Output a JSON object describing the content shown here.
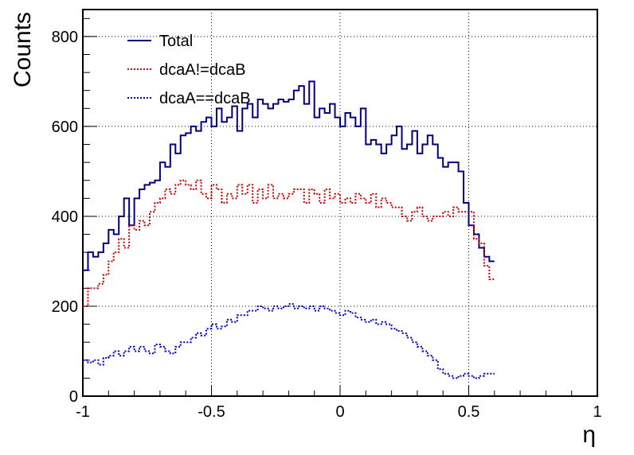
{
  "chart_data": {
    "type": "line",
    "title": "",
    "xlabel": "η",
    "ylabel": "Counts",
    "xlim": [
      -1,
      1
    ],
    "ylim": [
      0,
      860
    ],
    "x_ticks": [
      -1,
      -0.5,
      0,
      0.5,
      1
    ],
    "x_tick_labels": [
      "-1",
      "-0.5",
      "0",
      "0.5",
      "1"
    ],
    "y_ticks": [
      0,
      200,
      400,
      600,
      800
    ],
    "y_tick_labels": [
      "0",
      "200",
      "400",
      "600",
      "800"
    ],
    "grid": true,
    "legend_position": "top-left",
    "histogram": true,
    "bin_edges_start": -1,
    "bin_width": 0.02,
    "series": [
      {
        "name": "Total",
        "color": "#000080",
        "style": "solid",
        "values": [
          280,
          320,
          310,
          320,
          340,
          370,
          360,
          400,
          440,
          380,
          440,
          460,
          470,
          475,
          480,
          520,
          510,
          560,
          540,
          580,
          585,
          600,
          590,
          610,
          620,
          600,
          640,
          610,
          620,
          645,
          590,
          640,
          650,
          620,
          660,
          650,
          640,
          650,
          660,
          655,
          660,
          680,
          690,
          650,
          700,
          620,
          640,
          630,
          650,
          620,
          600,
          630,
          620,
          600,
          640,
          560,
          570,
          560,
          540,
          560,
          580,
          600,
          550,
          560,
          590,
          540,
          560,
          580,
          560,
          530,
          510,
          520,
          520,
          500,
          430,
          380,
          360,
          330,
          310,
          300
        ]
      },
      {
        "name": "dcaA!=dcaB",
        "color": "#cc0000",
        "style": "dotted",
        "values": [
          200,
          240,
          240,
          250,
          270,
          300,
          320,
          350,
          330,
          380,
          370,
          390,
          380,
          410,
          430,
          440,
          460,
          450,
          470,
          480,
          470,
          460,
          480,
          450,
          440,
          470,
          460,
          430,
          450,
          440,
          470,
          450,
          470,
          430,
          460,
          440,
          470,
          440,
          450,
          440,
          450,
          460,
          460,
          430,
          460,
          450,
          430,
          460,
          440,
          450,
          430,
          440,
          430,
          450,
          440,
          430,
          450,
          420,
          440,
          430,
          420,
          420,
          400,
          390,
          410,
          420,
          400,
          390,
          400,
          400,
          410,
          400,
          420,
          410,
          410,
          410,
          350,
          340,
          290,
          260
        ]
      },
      {
        "name": "dcaA==dcaB",
        "color": "#0000cc",
        "style": "dotted",
        "values": [
          80,
          75,
          80,
          70,
          85,
          90,
          100,
          90,
          100,
          110,
          100,
          110,
          100,
          95,
          115,
          110,
          100,
          95,
          110,
          120,
          120,
          130,
          140,
          135,
          150,
          160,
          150,
          155,
          170,
          165,
          180,
          180,
          190,
          190,
          200,
          195,
          190,
          200,
          195,
          200,
          205,
          195,
          200,
          195,
          200,
          190,
          200,
          195,
          190,
          185,
          180,
          190,
          185,
          175,
          170,
          165,
          170,
          160,
          165,
          160,
          150,
          145,
          140,
          130,
          120,
          110,
          100,
          90,
          80,
          60,
          50,
          45,
          40,
          45,
          50,
          45,
          40,
          45,
          50,
          50
        ]
      }
    ]
  }
}
